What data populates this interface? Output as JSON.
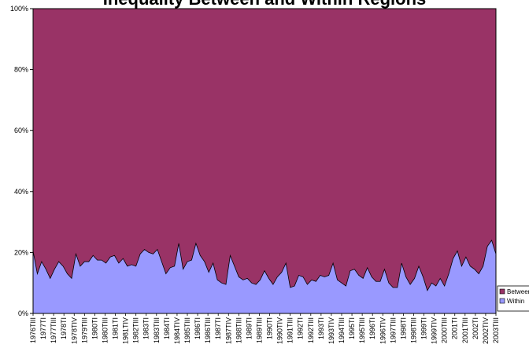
{
  "chart_data": {
    "type": "area",
    "title": "Inequality Between and Within Regions",
    "ylim": [
      0,
      100
    ],
    "y_ticks": [
      "0%",
      "20%",
      "40%",
      "60%",
      "80%",
      "100%"
    ],
    "stacked_percent": true,
    "grid": false,
    "legend_placement": "bottom-right",
    "x_tick_labels": [
      "1976TIII",
      "1977TI",
      "1977TIII",
      "1978TI",
      "1978TIV",
      "1979TIII",
      "1980TI",
      "1980TIII",
      "1981TI",
      "1981TIV",
      "1982TIII",
      "1983TI",
      "1983TIII",
      "1984TI",
      "1984TIV",
      "1985TIII",
      "1986TI",
      "1986TIII",
      "1987TI",
      "1987TIV",
      "1988TIII",
      "1989TI",
      "1989TIII",
      "1990TI",
      "1990TIV",
      "1991TIII",
      "1992TI",
      "1992TIII",
      "1993TI",
      "1993TIV",
      "1994TIII",
      "1995TI",
      "1995TIII",
      "1996TI",
      "1996TIV",
      "1997TIII",
      "1998TI",
      "1998TIII",
      "1999TI",
      "1999TIV",
      "2000TIII",
      "2001TI",
      "2001TIII",
      "2002TI",
      "2002TIV",
      "2003TIII"
    ],
    "series": [
      {
        "name": "Within",
        "color": "#9999ff",
        "values": [
          20.5,
          13,
          17,
          14.5,
          11.5,
          14.5,
          17,
          15.5,
          13,
          11.5,
          19.5,
          15.5,
          17,
          17,
          19,
          17.5,
          17.5,
          16.5,
          18.5,
          19,
          16.5,
          18,
          15.5,
          16,
          15.5,
          19.5,
          21,
          20,
          19.5,
          21,
          17,
          13,
          15,
          15.5,
          23,
          14.5,
          17,
          17.5,
          23,
          19,
          17,
          13.5,
          16.5,
          11,
          10,
          9.5,
          19,
          15.5,
          12,
          11,
          11.5,
          10,
          9.5,
          11,
          14,
          11.5,
          9.5,
          12,
          13.5,
          16.5,
          8.5,
          9,
          12.5,
          12,
          9.5,
          11,
          10.5,
          12.5,
          12,
          12.5,
          16.5,
          11,
          10,
          9,
          14,
          14.5,
          12.5,
          11.5,
          15,
          12,
          10.5,
          10.5,
          14.5,
          10,
          8.5,
          8.5,
          16.5,
          12,
          9.5,
          11.5,
          15.5,
          12,
          7.5,
          10,
          9,
          11.5,
          9,
          13,
          18,
          20.5,
          15.5,
          18.5,
          15.5,
          14.5,
          13,
          15.5,
          22,
          24,
          19.5
        ]
      },
      {
        "name": "Between",
        "color": "#993366",
        "values": "remainder to 100%"
      }
    ]
  }
}
